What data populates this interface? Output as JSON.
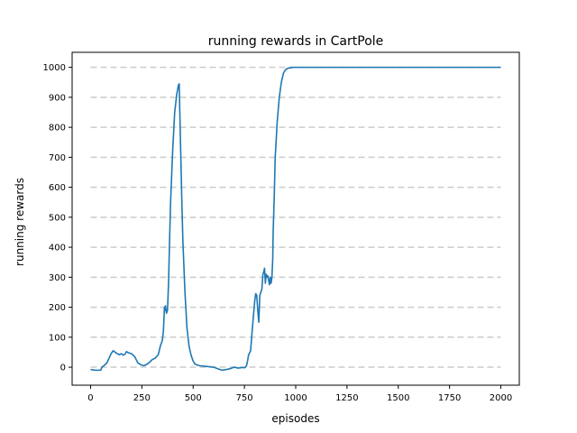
{
  "chart_data": {
    "type": "line",
    "title": "running rewards in CartPole",
    "xlabel": "episodes",
    "ylabel": "running rewards",
    "xlim": [
      -90,
      2090
    ],
    "ylim": [
      -60,
      1050
    ],
    "xticks": [
      0,
      250,
      500,
      750,
      1000,
      1250,
      1500,
      1750,
      2000
    ],
    "yticks": [
      0,
      100,
      200,
      300,
      400,
      500,
      600,
      700,
      800,
      900,
      1000
    ],
    "grid": "horizontal dashed",
    "colors": {
      "line": "#1f77b4",
      "grid": "#cccccc",
      "axes": "#000000"
    },
    "series": [
      {
        "x": [
          0,
          25,
          50,
          55,
          65,
          80,
          90,
          100,
          110,
          120,
          130,
          140,
          150,
          160,
          170,
          175,
          185,
          200,
          215,
          230,
          245,
          260,
          275,
          290,
          300,
          315,
          330,
          340,
          345,
          350,
          355,
          360,
          362,
          365,
          370,
          375,
          380,
          385,
          390,
          400,
          410,
          420,
          428,
          432,
          436,
          440,
          445,
          450,
          460,
          470,
          480,
          490,
          500,
          510,
          530,
          560,
          600,
          620,
          640,
          660,
          680,
          700,
          720,
          740,
          750,
          755,
          760,
          765,
          770,
          780,
          790,
          800,
          805,
          810,
          815,
          820,
          825,
          830,
          835,
          840,
          845,
          848,
          852,
          856,
          860,
          864,
          868,
          872,
          876,
          880,
          884,
          888,
          890,
          895,
          900,
          910,
          920,
          930,
          940,
          950,
          960,
          970,
          980,
          990,
          1000,
          1020,
          1050,
          1100,
          1200,
          1300,
          1500,
          1700,
          2000
        ],
        "y": [
          -8,
          -10,
          -10,
          0,
          5,
          15,
          30,
          45,
          55,
          50,
          45,
          42,
          45,
          40,
          45,
          52,
          48,
          45,
          35,
          15,
          8,
          5,
          10,
          18,
          25,
          30,
          42,
          70,
          80,
          90,
          120,
          200,
          190,
          205,
          180,
          190,
          280,
          420,
          550,
          720,
          850,
          910,
          940,
          945,
          820,
          700,
          550,
          420,
          250,
          130,
          70,
          40,
          20,
          10,
          5,
          3,
          0,
          -5,
          -10,
          -8,
          -5,
          0,
          -3,
          -1,
          -2,
          0,
          5,
          20,
          40,
          55,
          140,
          220,
          245,
          240,
          190,
          150,
          240,
          250,
          260,
          310,
          320,
          330,
          280,
          310,
          300,
          305,
          290,
          275,
          300,
          280,
          300,
          360,
          450,
          560,
          700,
          820,
          900,
          950,
          980,
          992,
          996,
          998,
          999,
          1000,
          1000,
          1000,
          1000,
          1000,
          1000,
          1000,
          1000,
          1000,
          1000
        ]
      }
    ]
  }
}
